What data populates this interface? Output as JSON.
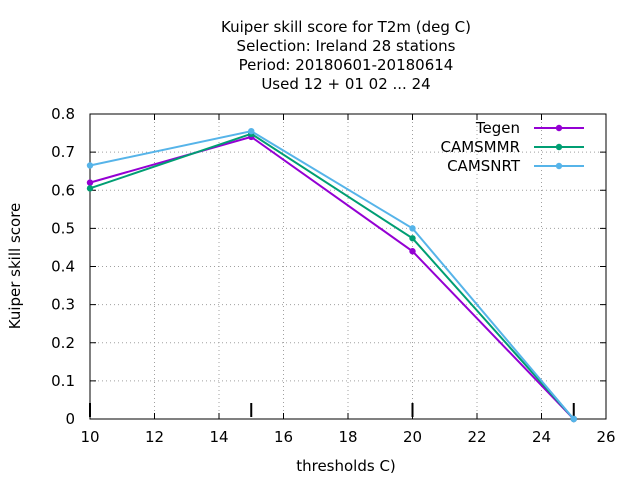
{
  "chart_data": {
    "type": "line",
    "title_lines": [
      "Kuiper skill score  for T2m (deg C)",
      "Selection: Ireland      28 stations",
      "Period: 20180601-20180614",
      "Used  12 + 01 02 ... 24"
    ],
    "xlabel": "thresholds C)",
    "ylabel": "Kuiper skill score",
    "xlim": [
      10,
      26
    ],
    "ylim": [
      0,
      0.8
    ],
    "xticks": [
      10,
      12,
      14,
      16,
      18,
      20,
      22,
      24,
      26
    ],
    "yticks": [
      0,
      0.1,
      0.2,
      0.3,
      0.4,
      0.5,
      0.6,
      0.7,
      0.8
    ],
    "xtick_labels": [
      "10",
      "12",
      "14",
      "16",
      "18",
      "20",
      "22",
      "24",
      "26"
    ],
    "ytick_labels": [
      "0",
      "0.1",
      "0.2",
      "0.3",
      "0.4",
      "0.5",
      "0.6",
      "0.7",
      "0.8"
    ],
    "grid": true,
    "legend_position": "top-right",
    "bottom_marks_x": [
      10,
      15,
      20,
      25
    ],
    "series": [
      {
        "name": "Tegen",
        "color": "#9400d3",
        "x": [
          10,
          15,
          20,
          25
        ],
        "y": [
          0.62,
          0.74,
          0.44,
          0.0
        ]
      },
      {
        "name": "CAMSMMR",
        "color": "#009e73",
        "x": [
          10,
          15,
          20,
          25
        ],
        "y": [
          0.605,
          0.748,
          0.474,
          0.0
        ]
      },
      {
        "name": "CAMSNRT",
        "color": "#56b4e9",
        "x": [
          10,
          15,
          20,
          25
        ],
        "y": [
          0.665,
          0.755,
          0.5,
          0.0
        ]
      }
    ]
  }
}
